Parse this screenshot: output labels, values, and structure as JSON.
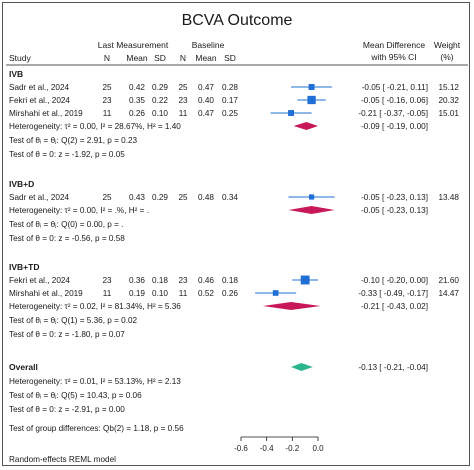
{
  "title": "BCVA Outcome",
  "header": {
    "study": "Study",
    "last_measurement": "Last Measurement",
    "baseline": "Baseline",
    "n": "N",
    "mean": "Mean",
    "sd": "SD",
    "mean_difference": "Mean Difference",
    "with_ci": "with 95% CI",
    "weight": "Weight",
    "weight_unit": "(%)"
  },
  "footer_note": "Random-effects REML model",
  "colors": {
    "study": "#1f6fd6",
    "subgroup": "#c8185a",
    "overall": "#2bb58c",
    "line": "#1a1a1a"
  },
  "chart_data": {
    "type": "forest",
    "title": "BCVA Outcome",
    "xlim": [
      -0.6,
      0.0
    ],
    "xticks": [
      "-0.6",
      "-0.4",
      "-0.2",
      "0.0"
    ],
    "groups": [
      {
        "label": "IVB",
        "studies": [
          {
            "name": "Sadr et al., 2024",
            "n1": "25",
            "mean1": "0.42",
            "sd1": "0.29",
            "n2": "25",
            "mean2": "0.47",
            "sd2": "0.28",
            "effect": -0.05,
            "lo": -0.21,
            "hi": 0.11,
            "ci_text": "-0.05 [ -0.21,  0.11]",
            "weight": "15.12"
          },
          {
            "name": "Fekri et al., 2024",
            "n1": "23",
            "mean1": "0.35",
            "sd1": "0.22",
            "n2": "23",
            "mean2": "0.40",
            "sd2": "0.17",
            "effect": -0.05,
            "lo": -0.16,
            "hi": 0.06,
            "ci_text": "-0.05 [ -0.16,  0.06]",
            "weight": "20.32"
          },
          {
            "name": "Mirshahi et al., 2019",
            "n1": "11",
            "mean1": "0.26",
            "sd1": "0.10",
            "n2": "11",
            "mean2": "0.47",
            "sd2": "0.25",
            "effect": -0.21,
            "lo": -0.37,
            "hi": -0.05,
            "ci_text": "-0.21 [ -0.37, -0.05]",
            "weight": "15.01"
          }
        ],
        "summary": {
          "effect": -0.09,
          "lo": -0.19,
          "hi": 0.0,
          "ci_text": "-0.09 [ -0.19,  0.00]"
        },
        "heterogeneity": "Heterogeneity: τ² = 0.00, I² = 28.67%, H² = 1.40",
        "test_homogeneity": "Test of θᵢ = θⱼ: Q(2) = 2.91, p = 0.23",
        "test_effect": "Test of θ = 0: z = -1.92, p = 0.05"
      },
      {
        "label": "IVB+D",
        "studies": [
          {
            "name": "Sadr et al., 2024",
            "n1": "25",
            "mean1": "0.43",
            "sd1": "0.29",
            "n2": "25",
            "mean2": "0.48",
            "sd2": "0.34",
            "effect": -0.05,
            "lo": -0.23,
            "hi": 0.13,
            "ci_text": "-0.05 [ -0.23,  0.13]",
            "weight": "13.48"
          }
        ],
        "summary": {
          "effect": -0.05,
          "lo": -0.23,
          "hi": 0.13,
          "ci_text": "-0.05 [ -0.23,  0.13]"
        },
        "heterogeneity": "Heterogeneity: τ² = 0.00, I² = .%, H² = .",
        "test_homogeneity": "Test of θᵢ = θⱼ: Q(0) = 0.00, p = .",
        "test_effect": "Test of θ = 0: z = -0.56, p = 0.58"
      },
      {
        "label": "IVB+TD",
        "studies": [
          {
            "name": "Fekri et al., 2024",
            "n1": "23",
            "mean1": "0.36",
            "sd1": "0.18",
            "n2": "23",
            "mean2": "0.46",
            "sd2": "0.18",
            "effect": -0.1,
            "lo": -0.2,
            "hi": 0.0,
            "ci_text": "-0.10 [ -0.20,  0.00]",
            "weight": "21.60"
          },
          {
            "name": "Mirshahi et al., 2019",
            "n1": "11",
            "mean1": "0.19",
            "sd1": "0.10",
            "n2": "11",
            "mean2": "0.52",
            "sd2": "0.26",
            "effect": -0.33,
            "lo": -0.49,
            "hi": -0.17,
            "ci_text": "-0.33 [ -0.49, -0.17]",
            "weight": "14.47"
          }
        ],
        "summary": {
          "effect": -0.21,
          "lo": -0.43,
          "hi": 0.02,
          "ci_text": "-0.21 [ -0.43,  0.02]"
        },
        "heterogeneity": "Heterogeneity: τ² = 0.02, I² = 81.34%, H² = 5.36",
        "test_homogeneity": "Test of θᵢ = θⱼ: Q(1) = 5.36, p = 0.02",
        "test_effect": "Test of θ = 0: z = -1.80, p = 0.07"
      }
    ],
    "overall": {
      "label": "Overall",
      "effect": -0.13,
      "lo": -0.21,
      "hi": -0.04,
      "ci_text": "-0.13 [ -0.21, -0.04]",
      "heterogeneity": "Heterogeneity: τ² = 0.01, I² = 53.13%, H² = 2.13",
      "test_homogeneity": "Test of θᵢ = θⱼ: Q(5) = 10.43, p = 0.06",
      "test_effect": "Test of θ = 0: z = -2.91, p = 0.00"
    },
    "group_differences": "Test of group differences: Qb(2) = 1.18, p = 0.56"
  }
}
